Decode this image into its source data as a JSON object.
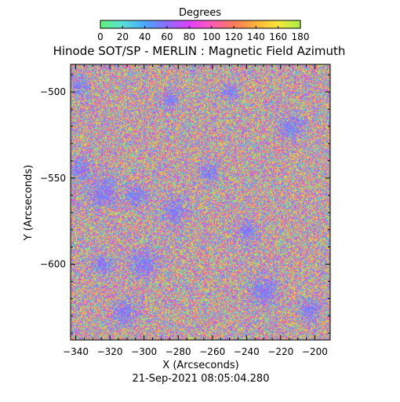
{
  "chart_data": {
    "type": "heatmap",
    "title": "Hinode SOT/SP - MERLIN : Magnetic Field Azimuth",
    "xlabel": "X (Arcseconds)",
    "ylabel": "Y (Arcseconds)",
    "timestamp": "21-Sep-2021 08:05:04.280",
    "xlim": [
      -343,
      -191
    ],
    "ylim": [
      -644,
      -484
    ],
    "x_ticks": [
      -340,
      -320,
      -300,
      -280,
      -260,
      -240,
      -220,
      -200
    ],
    "y_ticks": [
      -500,
      -550,
      -600
    ],
    "colorbar": {
      "label": "Degrees",
      "range": [
        0,
        180
      ],
      "ticks": [
        0,
        20,
        40,
        60,
        80,
        100,
        120,
        140,
        160,
        180
      ],
      "colors": [
        "#5ff07a",
        "#59e0d8",
        "#4aa8ff",
        "#8c6cff",
        "#e040ff",
        "#ff5ab8",
        "#ff7a5a",
        "#ffb23c",
        "#f6e83a",
        "#a8f04a"
      ]
    },
    "blue_patches": [
      {
        "x": -338,
        "y": -497,
        "r": 4
      },
      {
        "x": -338,
        "y": -545,
        "r": 5
      },
      {
        "x": -324,
        "y": -558,
        "r": 8
      },
      {
        "x": -305,
        "y": -560,
        "r": 6
      },
      {
        "x": -325,
        "y": -600,
        "r": 5
      },
      {
        "x": -300,
        "y": -599,
        "r": 7
      },
      {
        "x": -282,
        "y": -569,
        "r": 6
      },
      {
        "x": -262,
        "y": -547,
        "r": 5
      },
      {
        "x": -312,
        "y": -628,
        "r": 6
      },
      {
        "x": -230,
        "y": -615,
        "r": 7
      },
      {
        "x": -214,
        "y": -520,
        "r": 6
      },
      {
        "x": -240,
        "y": -580,
        "r": 5
      },
      {
        "x": -203,
        "y": -626,
        "r": 5
      },
      {
        "x": -285,
        "y": -505,
        "r": 4
      },
      {
        "x": -250,
        "y": -500,
        "r": 4
      }
    ]
  }
}
